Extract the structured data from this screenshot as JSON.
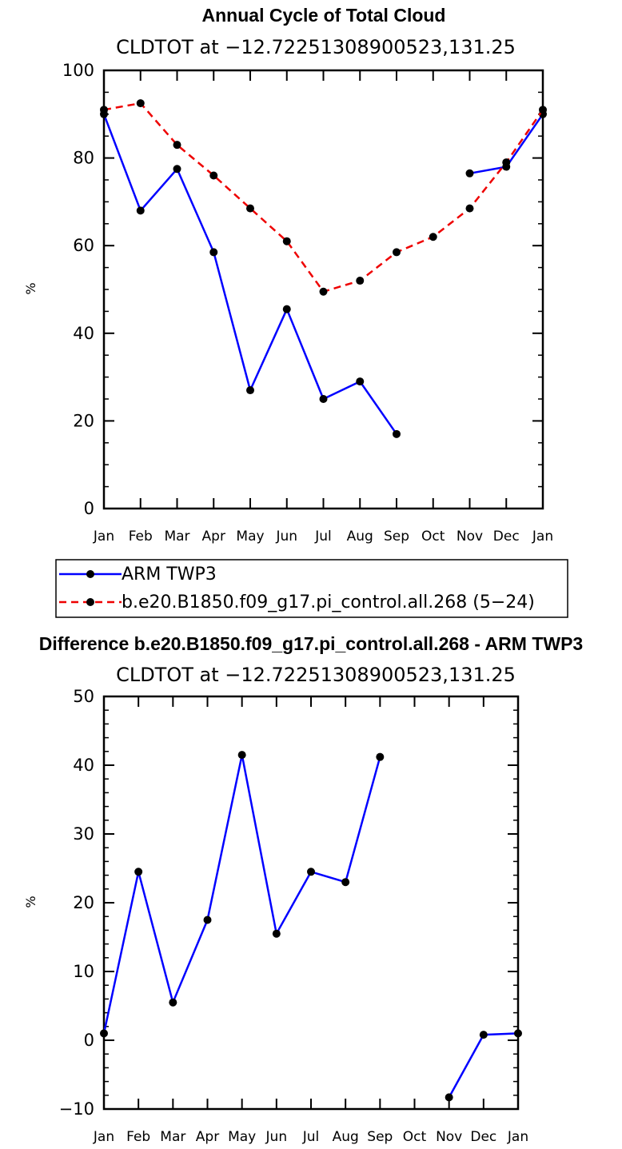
{
  "chart_data": [
    {
      "type": "line",
      "title": "Annual Cycle of Total Cloud",
      "subtitle": "CLDTOT at −12.72251308900523,131.25",
      "xlabel": "",
      "ylabel": "%",
      "ylim": [
        0,
        100
      ],
      "yticks": [
        "0",
        "20",
        "40",
        "60",
        "80",
        "100"
      ],
      "ytick_values": [
        0,
        20,
        40,
        60,
        80,
        100
      ],
      "categories": [
        "Jan",
        "Feb",
        "Mar",
        "Apr",
        "May",
        "Jun",
        "Jul",
        "Aug",
        "Sep",
        "Oct",
        "Nov",
        "Dec",
        "Jan"
      ],
      "series": [
        {
          "name": "ARM TWP3",
          "color": "#0000ff",
          "style": "solid",
          "values": [
            90,
            68,
            77.5,
            58.5,
            27,
            45.5,
            25,
            29,
            17,
            null,
            76.5,
            78,
            90
          ]
        },
        {
          "name": "b.e20.B1850.f09_g17.pi_control.all.268 (5−24)",
          "color": "#ee0000",
          "style": "dashed",
          "values": [
            91,
            92.5,
            83,
            76,
            68.5,
            61,
            49.5,
            52,
            58.5,
            62,
            68.5,
            79,
            91
          ]
        }
      ],
      "legend": {
        "placement": "below",
        "entries": [
          "ARM TWP3",
          "b.e20.B1850.f09_g17.pi_control.all.268 (5−24)"
        ]
      }
    },
    {
      "type": "line",
      "title": "Difference b.e20.B1850.f09_g17.pi_control.all.268 - ARM TWP3",
      "subtitle": "CLDTOT at −12.72251308900523,131.25",
      "xlabel": "",
      "ylabel": "%",
      "ylim": [
        -10,
        50
      ],
      "yticks": [
        "−10",
        "0",
        "10",
        "20",
        "30",
        "40",
        "50"
      ],
      "ytick_values": [
        -10,
        0,
        10,
        20,
        30,
        40,
        50
      ],
      "categories": [
        "Jan",
        "Feb",
        "Mar",
        "Apr",
        "May",
        "Jun",
        "Jul",
        "Aug",
        "Sep",
        "Oct",
        "Nov",
        "Dec",
        "Jan"
      ],
      "series": [
        {
          "name": "Difference",
          "color": "#0000ff",
          "style": "solid",
          "values": [
            1,
            24.5,
            5.5,
            17.5,
            41.5,
            15.5,
            24.5,
            23,
            41.2,
            null,
            -8.3,
            0.8,
            1
          ]
        }
      ]
    }
  ]
}
